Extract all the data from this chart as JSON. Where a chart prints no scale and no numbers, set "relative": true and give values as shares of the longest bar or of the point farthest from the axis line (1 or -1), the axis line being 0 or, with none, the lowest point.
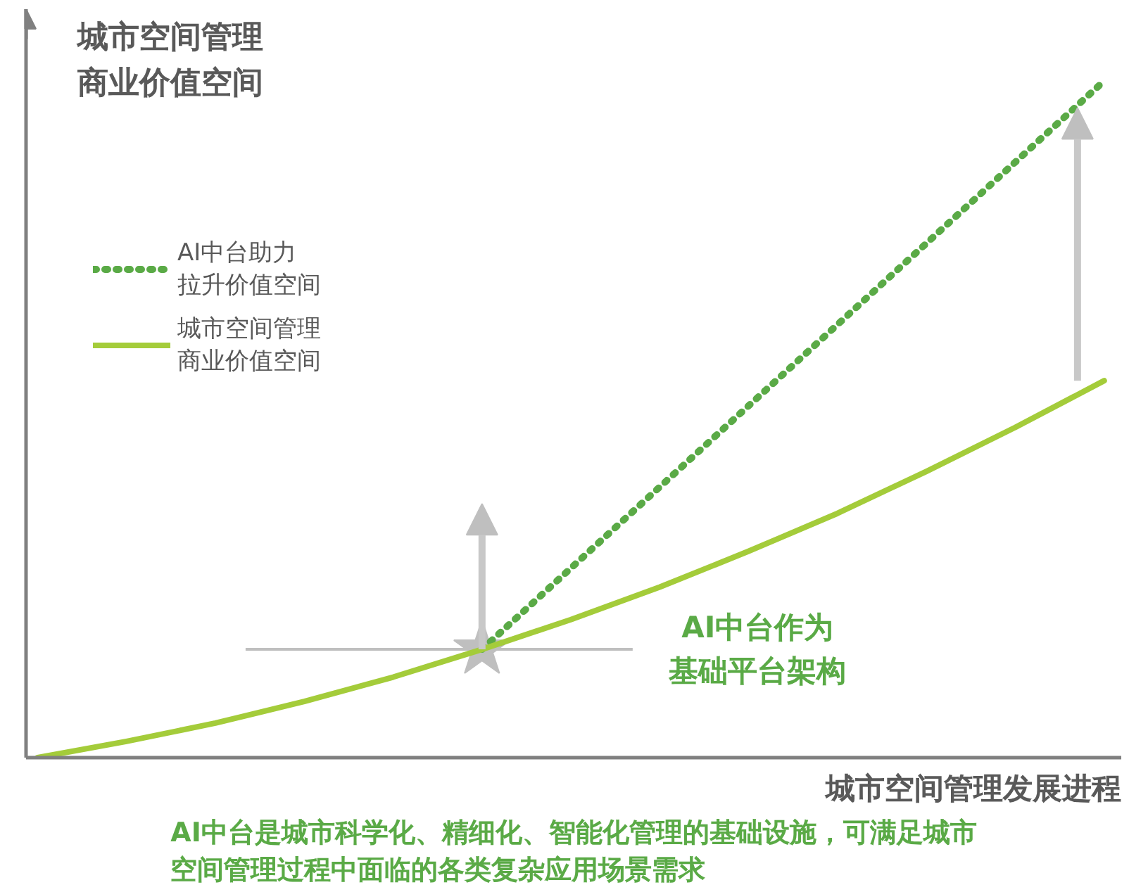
{
  "chart_data": {
    "type": "line",
    "relative": true,
    "ylabel": "城市空间管理商业价值空间",
    "xlabel": "城市空间管理发展进程",
    "categories": [
      null,
      null,
      null,
      null,
      null,
      null,
      null,
      null,
      null,
      null,
      null,
      null,
      null
    ],
    "series": [
      {
        "name": "AI中台助力拉升价值空间",
        "color": "#5aaa46",
        "line_style": "dotted",
        "values": [
          null,
          null,
          null,
          null,
          null,
          0.16,
          0.28,
          0.4,
          0.52,
          0.64,
          0.76,
          0.88,
          1.0
        ]
      },
      {
        "name": "城市空间管理商业价值空间",
        "color": "#a4cc3a",
        "line_style": "solid",
        "values": [
          0,
          0.024,
          0.051,
          0.083,
          0.119,
          0.16,
          0.204,
          0.252,
          0.305,
          0.361,
          0.423,
          0.488,
          0.557
        ]
      }
    ],
    "ref_lines": [
      {
        "axis": "y",
        "value": 0.16,
        "color": "#bfbfbf"
      }
    ],
    "legend": "top left",
    "grid": false,
    "annotations": [
      "AI中台作为基础平台架构",
      "AI中台是城市科学化、精细化、智能化管理的基础设施，可满足城市空间管理过程中面临的各类复杂应用场景需求"
    ]
  }
}
